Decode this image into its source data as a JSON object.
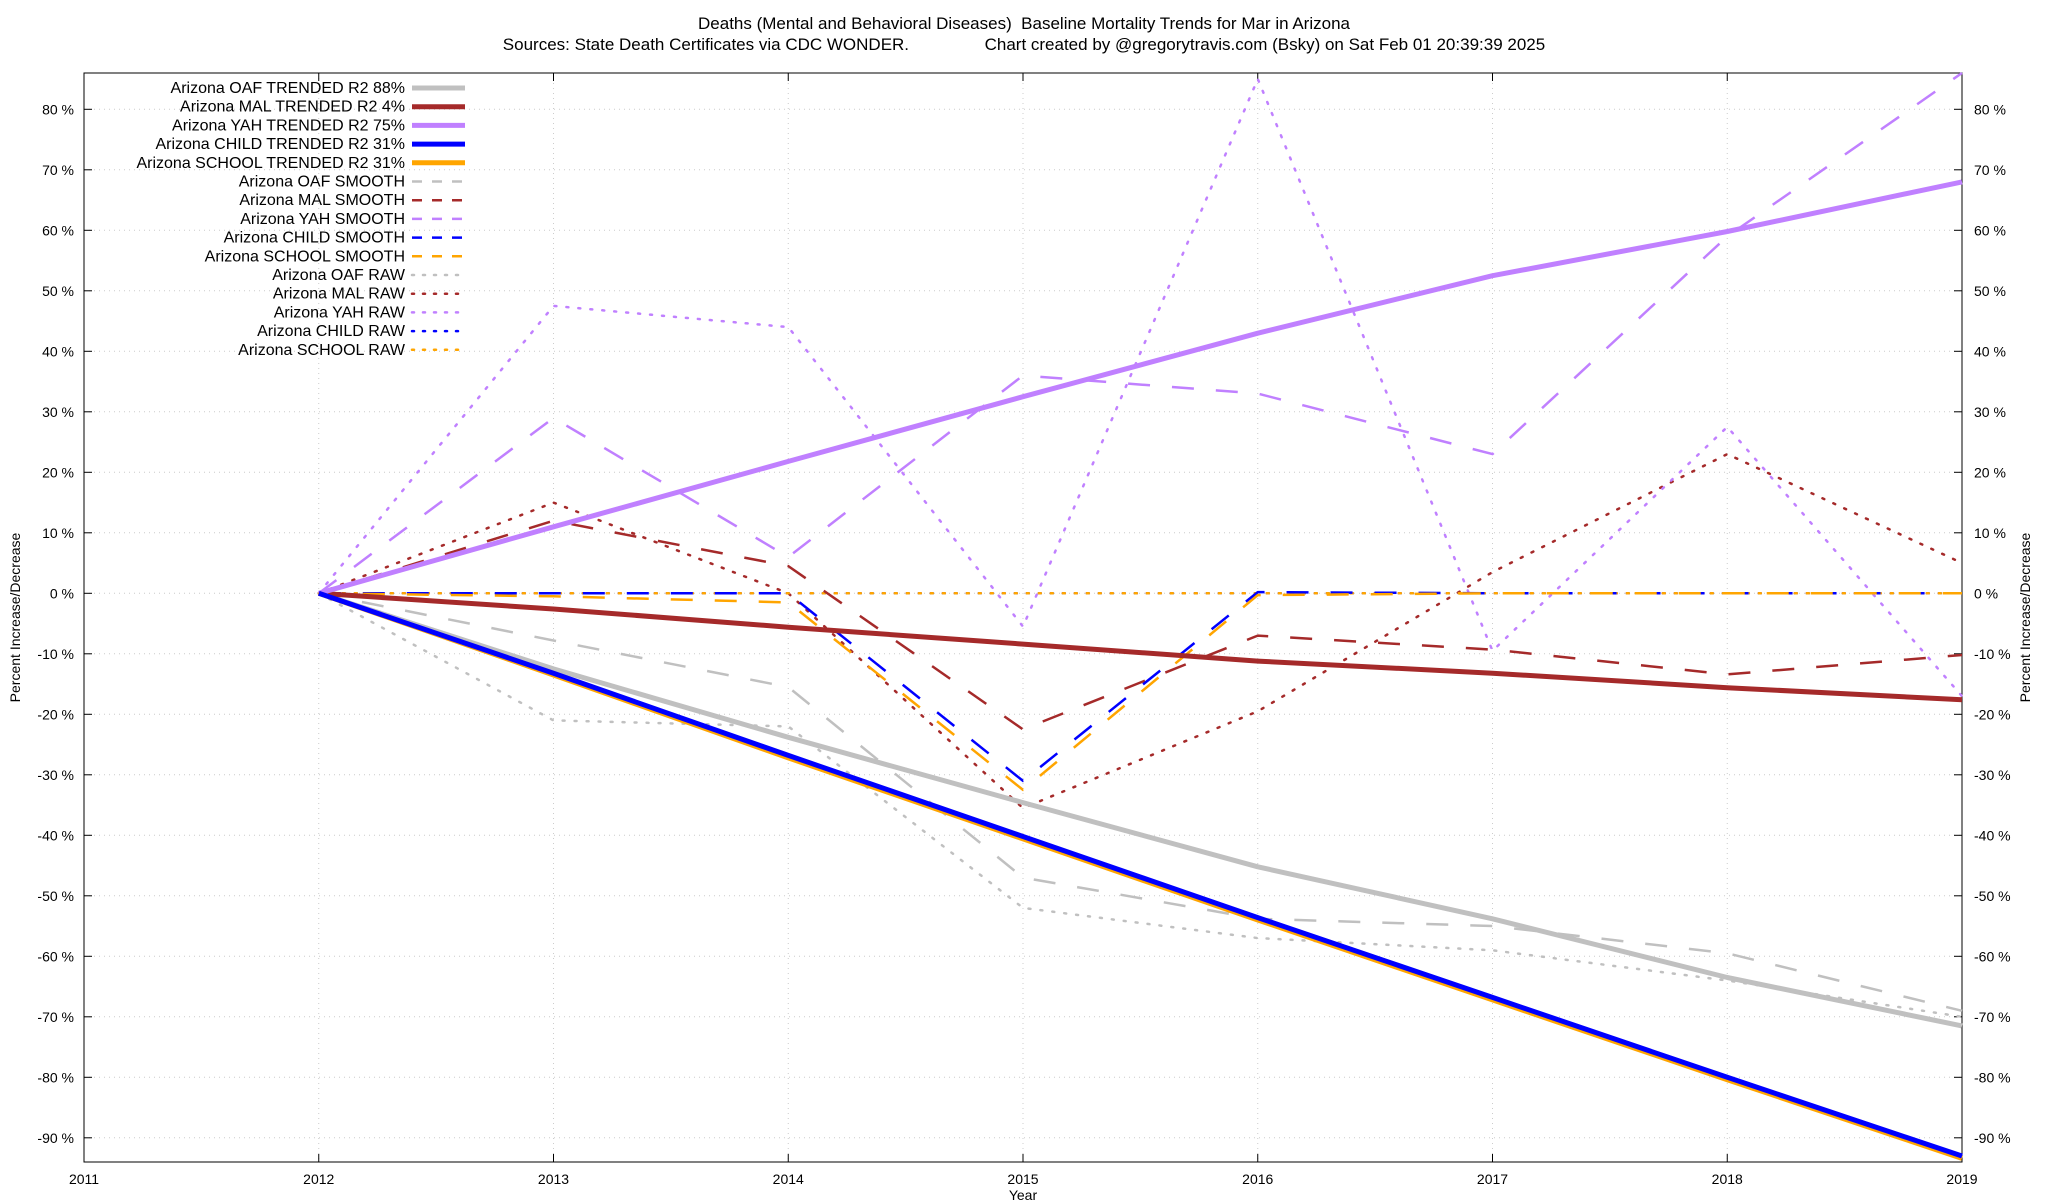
{
  "chart_data": {
    "type": "line",
    "title": "Deaths (Mental and Behavioral Diseases)  Baseline Mortality Trends for Mar in Arizona",
    "subtitle": "Sources: State Death Certificates via CDC WONDER.                Chart created by @gregorytravis.com (Bsky) on Sat Feb 01 20:39:39 2025",
    "xlabel": "Year",
    "ylabel": "Percent Increase/Decrease",
    "y2label": "Percent Increase/Decrease",
    "xlim": [
      2011,
      2019
    ],
    "ylim": [
      -94,
      86
    ],
    "x_ticks": [
      2011,
      2012,
      2013,
      2014,
      2015,
      2016,
      2017,
      2018,
      2019
    ],
    "y_ticks": [
      -90,
      -80,
      -70,
      -60,
      -50,
      -40,
      -30,
      -20,
      -10,
      0,
      10,
      20,
      30,
      40,
      50,
      60,
      70,
      80
    ],
    "y_tick_suffix": " %",
    "grid": true,
    "legend_position": "top-left",
    "x": [
      2012,
      2013,
      2014,
      2015,
      2016,
      2017,
      2018,
      2019
    ],
    "series": [
      {
        "name": "Arizona OAF TRENDED R2  88%",
        "color": "#c0c0c0",
        "style": "solid",
        "values": [
          0,
          -12.5,
          -23.8,
          -34.6,
          -45.2,
          -53.8,
          -63.5,
          -71.5
        ]
      },
      {
        "name": "Arizona MAL TRENDED R2   4%",
        "color": "#a52a2a",
        "style": "solid",
        "values": [
          0,
          -2.6,
          -5.6,
          -8.4,
          -11.2,
          -13.2,
          -15.6,
          -17.6
        ]
      },
      {
        "name": "Arizona YAH TRENDED R2  75%",
        "color": "#c080ff",
        "style": "solid",
        "values": [
          0,
          11,
          21.8,
          32.5,
          43,
          52.5,
          59.8,
          68
        ]
      },
      {
        "name": "Arizona CHILD TRENDED R2  31%",
        "color": "#0000ff",
        "style": "solid",
        "values": [
          0,
          -13.2,
          -26.8,
          -40.2,
          -53.6,
          -66.8,
          -80,
          -93
        ]
      },
      {
        "name": "Arizona SCHOOL TRENDED R2  31%",
        "color": "#ffa500",
        "style": "solid",
        "values": [
          0,
          -13.5,
          -27.2,
          -40.6,
          -54,
          -67.2,
          -80.4,
          -93.4
        ]
      },
      {
        "name": "Arizona OAF SMOOTH",
        "color": "#c0c0c0",
        "style": "dashed",
        "values": [
          0,
          -7.8,
          -15.5,
          -47,
          -53.8,
          -55,
          -59.5,
          -69
        ]
      },
      {
        "name": "Arizona MAL SMOOTH",
        "color": "#a52a2a",
        "style": "dashed",
        "values": [
          0,
          12,
          4.5,
          -22.5,
          -7,
          -9.3,
          -13.4,
          -10.2
        ]
      },
      {
        "name": "Arizona YAH SMOOTH",
        "color": "#c080ff",
        "style": "dashed",
        "values": [
          0,
          29,
          6,
          36,
          33,
          23,
          59,
          86
        ]
      },
      {
        "name": "Arizona CHILD SMOOTH",
        "color": "#0000ff",
        "style": "dashed",
        "values": [
          0,
          0,
          0,
          -31,
          0.2,
          0,
          0,
          0
        ]
      },
      {
        "name": "Arizona SCHOOL SMOOTH",
        "color": "#ffa500",
        "style": "dashed",
        "values": [
          0,
          -0.5,
          -1.5,
          -32.5,
          -0.3,
          0,
          0,
          0
        ]
      },
      {
        "name": "Arizona OAF RAW",
        "color": "#c0c0c0",
        "style": "dotted",
        "values": [
          0,
          -21,
          -22,
          -52,
          -57,
          -59,
          -64,
          -70
        ]
      },
      {
        "name": "Arizona MAL RAW",
        "color": "#a52a2a",
        "style": "dotted",
        "values": [
          0,
          15,
          0,
          -35.5,
          -19.5,
          3.5,
          23,
          5
        ]
      },
      {
        "name": "Arizona YAH RAW",
        "color": "#c080ff",
        "style": "dotted",
        "values": [
          0,
          47.5,
          44,
          -5.5,
          85,
          -9.5,
          27.5,
          -17
        ]
      },
      {
        "name": "Arizona CHILD RAW",
        "color": "#0000ff",
        "style": "dotted",
        "values": [
          0,
          0,
          0,
          0,
          0,
          0,
          0,
          0
        ]
      },
      {
        "name": "Arizona SCHOOL RAW",
        "color": "#ffa500",
        "style": "dotted",
        "values": [
          0,
          0,
          0,
          0,
          0,
          0,
          0,
          0
        ]
      }
    ]
  }
}
